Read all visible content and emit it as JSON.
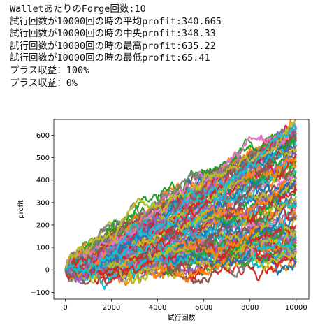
{
  "output": {
    "lines": [
      "WalletあたりのForge回数:10",
      "試行回数が10000回の時の平均profit:340.665",
      "試行回数が10000回の時の中央profit:348.33",
      "試行回数が10000回の時の最高profit:635.22",
      "試行回数が10000回の時の最低profit:65.41",
      "プラス収益：100%",
      "プラス収益：0%"
    ]
  },
  "chart_data": {
    "type": "line",
    "title": "",
    "xlabel": "試行回数",
    "ylabel": "profit",
    "xlim": [
      -500,
      10550
    ],
    "ylim": [
      -130,
      670
    ],
    "xticks": [
      0,
      2000,
      4000,
      6000,
      8000,
      10000
    ],
    "xtick_labels": [
      "0",
      "2000",
      "4000",
      "6000",
      "8000",
      "10000"
    ],
    "yticks": [
      -100,
      0,
      100,
      200,
      300,
      400,
      500,
      600
    ],
    "ytick_labels": [
      "−100",
      "0",
      "100",
      "200",
      "300",
      "400",
      "500",
      "600"
    ],
    "grid": false,
    "legend": "none",
    "num_series": 100,
    "colors": [
      "#1f77b4",
      "#ff7f0e",
      "#2ca02c",
      "#d62728",
      "#9467bd",
      "#8c564b",
      "#e377c2",
      "#7f7f7f",
      "#bcbd22",
      "#17becf"
    ],
    "series": [
      {
        "x": [
          0,
          2000,
          4000,
          6000,
          8000,
          10000
        ],
        "y": [
          0,
          40,
          140,
          270,
          420,
          565
        ]
      },
      {
        "x": [
          0,
          2000,
          4000,
          6000,
          8000,
          10000
        ],
        "y": [
          0,
          0,
          80,
          180,
          300,
          400
        ]
      },
      {
        "x": [
          0,
          2000,
          4000,
          6000,
          8000,
          10000
        ],
        "y": [
          0,
          95,
          210,
          330,
          470,
          635
        ]
      },
      {
        "x": [
          0,
          2000,
          4000,
          6000,
          8000,
          10000
        ],
        "y": [
          0,
          -60,
          -20,
          30,
          50,
          65
        ]
      },
      {
        "x": [
          0,
          2000,
          4000,
          6000,
          8000,
          10000
        ],
        "y": [
          0,
          20,
          90,
          170,
          260,
          348
        ]
      },
      {
        "x": [
          0,
          2000,
          4000,
          6000,
          8000,
          10000
        ],
        "y": [
          0,
          150,
          260,
          300,
          380,
          455
        ]
      },
      {
        "x": [
          0,
          2000,
          4000,
          6000,
          8000,
          10000
        ],
        "y": [
          0,
          -50,
          30,
          110,
          190,
          250
        ]
      },
      {
        "x": [
          0,
          2000,
          4000,
          6000,
          8000,
          10000
        ],
        "y": [
          0,
          60,
          120,
          200,
          330,
          510
        ]
      }
    ]
  }
}
